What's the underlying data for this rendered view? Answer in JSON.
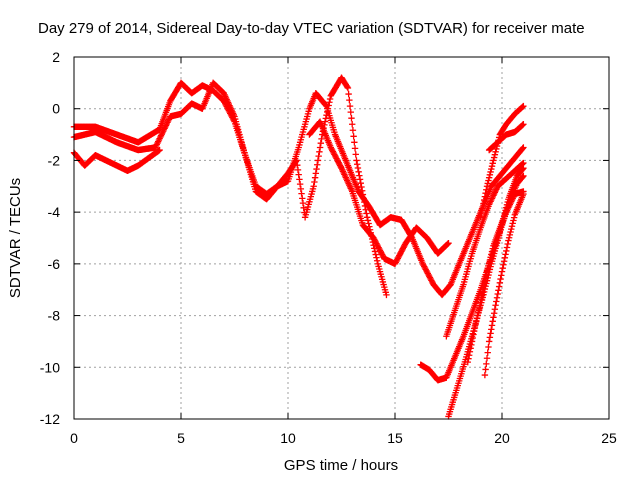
{
  "chart_data": {
    "type": "scatter",
    "title": "Day 279 of 2014, Sidereal Day-to-day VTEC variation (SDTVAR) for receiver mate",
    "xlabel": "GPS time / hours",
    "ylabel": "SDTVAR / TECUs",
    "xlim": [
      0,
      25
    ],
    "ylim": [
      -12,
      2
    ],
    "xticks": [
      "0",
      "5",
      "10",
      "15",
      "20",
      "25"
    ],
    "yticks": [
      "-12",
      "-10",
      "-8",
      "-6",
      "-4",
      "-2",
      "0",
      "2"
    ],
    "grid": true,
    "marker": "plus",
    "color": "#ff0000",
    "series": [
      {
        "points": [
          [
            0.0,
            -0.7
          ],
          [
            1.0,
            -0.7
          ],
          [
            2.0,
            -1.0
          ],
          [
            3.0,
            -1.3
          ],
          [
            4.0,
            -0.8
          ],
          [
            4.5,
            0.3
          ],
          [
            5.0,
            1.0
          ],
          [
            5.5,
            0.6
          ],
          [
            6.0,
            0.9
          ],
          [
            6.5,
            0.7
          ],
          [
            7.0,
            0.3
          ],
          [
            7.5,
            -0.5
          ],
          [
            8.0,
            -1.8
          ],
          [
            8.5,
            -3.2
          ],
          [
            9.0,
            -3.5
          ],
          [
            9.5,
            -3.0
          ],
          [
            10.0,
            -2.8
          ],
          [
            10.5,
            -1.5
          ],
          [
            11.0,
            0.0
          ],
          [
            11.3,
            0.6
          ],
          [
            11.8,
            0.1
          ],
          [
            12.2,
            -1.0
          ],
          [
            12.8,
            -2.2
          ],
          [
            13.3,
            -3.2
          ],
          [
            13.8,
            -3.8
          ],
          [
            14.3,
            -4.5
          ],
          [
            14.8,
            -4.2
          ],
          [
            15.3,
            -4.3
          ],
          [
            15.8,
            -5.0
          ],
          [
            16.3,
            -6.0
          ],
          [
            16.8,
            -6.8
          ],
          [
            17.2,
            -7.2
          ],
          [
            17.6,
            -6.8
          ],
          [
            18.0,
            -6.0
          ],
          [
            18.5,
            -5.0
          ],
          [
            19.0,
            -4.0
          ],
          [
            19.5,
            -3.0
          ],
          [
            20.0,
            -2.5
          ],
          [
            20.5,
            -2.0
          ],
          [
            21.0,
            -1.5
          ]
        ]
      },
      {
        "points": [
          [
            0.0,
            -1.1
          ],
          [
            1.0,
            -0.9
          ],
          [
            2.0,
            -1.3
          ],
          [
            3.0,
            -1.6
          ],
          [
            3.8,
            -1.5
          ],
          [
            4.5,
            -0.3
          ],
          [
            5.0,
            -0.2
          ],
          [
            5.5,
            0.2
          ],
          [
            6.0,
            0.0
          ],
          [
            6.5,
            1.0
          ],
          [
            7.0,
            0.6
          ],
          [
            7.5,
            -0.3
          ],
          [
            8.0,
            -1.8
          ],
          [
            8.5,
            -3.0
          ],
          [
            9.0,
            -3.3
          ],
          [
            9.5,
            -3.0
          ],
          [
            10.0,
            -2.5
          ],
          [
            10.4,
            -2.0
          ],
          [
            10.8,
            -4.2
          ],
          [
            11.2,
            -3.0
          ],
          [
            11.6,
            -1.0
          ],
          [
            12.0,
            0.5
          ],
          [
            12.5,
            1.2
          ],
          [
            12.8,
            0.8
          ],
          [
            13.2,
            -2.0
          ],
          [
            13.7,
            -4.2
          ],
          [
            14.2,
            -6.0
          ],
          [
            14.6,
            -7.2
          ]
        ]
      },
      {
        "points": [
          [
            0.0,
            -1.7
          ],
          [
            0.5,
            -2.2
          ],
          [
            1.0,
            -1.8
          ],
          [
            1.5,
            -2.0
          ],
          [
            2.0,
            -2.2
          ],
          [
            2.5,
            -2.4
          ],
          [
            3.0,
            -2.2
          ],
          [
            3.5,
            -1.9
          ],
          [
            4.0,
            -1.6
          ]
        ]
      },
      {
        "points": [
          [
            11.0,
            -1.0
          ],
          [
            11.5,
            -0.5
          ],
          [
            12.0,
            -1.5
          ],
          [
            12.5,
            -2.3
          ],
          [
            13.0,
            -3.2
          ],
          [
            13.5,
            -4.5
          ],
          [
            14.0,
            -5.0
          ],
          [
            14.5,
            -5.8
          ],
          [
            15.0,
            -6.0
          ],
          [
            15.5,
            -5.2
          ],
          [
            16.0,
            -4.6
          ],
          [
            16.5,
            -5.0
          ],
          [
            17.0,
            -5.6
          ],
          [
            17.5,
            -5.2
          ]
        ]
      },
      {
        "points": [
          [
            16.2,
            -9.9
          ],
          [
            16.6,
            -10.1
          ],
          [
            17.0,
            -10.5
          ],
          [
            17.4,
            -10.4
          ],
          [
            17.8,
            -9.6
          ],
          [
            18.2,
            -8.8
          ],
          [
            18.6,
            -7.9
          ],
          [
            19.0,
            -7.0
          ],
          [
            19.4,
            -6.0
          ],
          [
            19.8,
            -5.0
          ],
          [
            20.2,
            -4.0
          ],
          [
            20.6,
            -3.3
          ],
          [
            21.0,
            -3.2
          ]
        ]
      },
      {
        "points": [
          [
            17.5,
            -11.9
          ],
          [
            17.9,
            -10.8
          ],
          [
            18.3,
            -9.7
          ],
          [
            18.7,
            -8.5
          ],
          [
            19.1,
            -7.3
          ],
          [
            19.5,
            -6.0
          ],
          [
            19.9,
            -4.8
          ],
          [
            20.3,
            -3.5
          ],
          [
            20.7,
            -2.6
          ],
          [
            21.0,
            -2.3
          ]
        ]
      },
      {
        "points": [
          [
            17.4,
            -8.8
          ],
          [
            17.8,
            -7.8
          ],
          [
            18.2,
            -6.8
          ],
          [
            18.6,
            -5.6
          ],
          [
            19.0,
            -4.6
          ],
          [
            19.4,
            -3.7
          ],
          [
            19.8,
            -3.0
          ],
          [
            20.2,
            -2.7
          ],
          [
            20.6,
            -2.4
          ],
          [
            21.0,
            -2.1
          ]
        ]
      },
      {
        "points": [
          [
            18.4,
            -9.8
          ],
          [
            18.7,
            -8.6
          ],
          [
            19.0,
            -7.5
          ],
          [
            19.3,
            -6.3
          ],
          [
            19.6,
            -5.3
          ],
          [
            20.0,
            -4.4
          ],
          [
            20.4,
            -3.5
          ],
          [
            20.7,
            -2.9
          ],
          [
            21.0,
            -2.6
          ]
        ]
      },
      {
        "points": [
          [
            19.2,
            -10.3
          ],
          [
            19.4,
            -9.0
          ],
          [
            19.7,
            -7.6
          ],
          [
            20.0,
            -6.3
          ],
          [
            20.3,
            -5.1
          ],
          [
            20.6,
            -4.1
          ],
          [
            21.0,
            -3.3
          ]
        ]
      },
      {
        "points": [
          [
            19.0,
            -4.2
          ],
          [
            19.3,
            -3.0
          ],
          [
            19.6,
            -2.0
          ],
          [
            19.9,
            -1.0
          ],
          [
            20.2,
            -0.6
          ],
          [
            20.6,
            -0.2
          ],
          [
            21.0,
            0.1
          ]
        ]
      },
      {
        "points": [
          [
            19.4,
            -1.6
          ],
          [
            19.8,
            -1.3
          ],
          [
            20.2,
            -1.0
          ],
          [
            20.6,
            -0.9
          ],
          [
            21.0,
            -0.6
          ]
        ]
      }
    ]
  }
}
